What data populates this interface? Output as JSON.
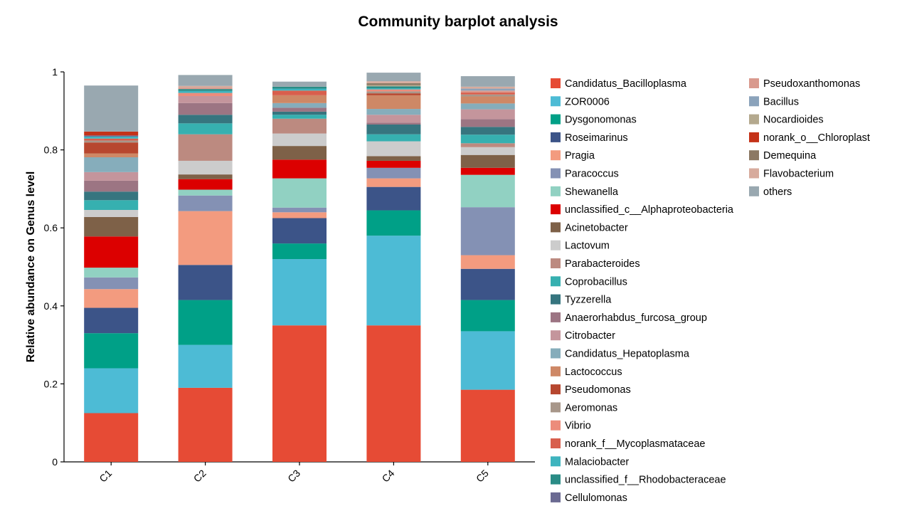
{
  "chart_data": {
    "type": "bar",
    "stacked": true,
    "title": "Community barplot analysis",
    "xlabel": "",
    "ylabel": "Relative abundance on Genus level",
    "ylim": [
      0,
      1
    ],
    "yticks": [
      0,
      0.2,
      0.4,
      0.6,
      0.8,
      1
    ],
    "ytick_labels": [
      "0",
      "0.2",
      "0.4",
      "0.6",
      "0.8",
      "1"
    ],
    "categories": [
      "C1",
      "C2",
      "C3",
      "C4",
      "C5"
    ],
    "legend_position": "right",
    "series": [
      {
        "name": "Candidatus_Bacilloplasma",
        "color": "#e64b35",
        "values": [
          0.125,
          0.19,
          0.35,
          0.35,
          0.185
        ]
      },
      {
        "name": "ZOR0006",
        "color": "#4dbbd5",
        "values": [
          0.115,
          0.11,
          0.17,
          0.23,
          0.15
        ]
      },
      {
        "name": "Dysgonomonas",
        "color": "#00a087",
        "values": [
          0.09,
          0.115,
          0.04,
          0.065,
          0.08
        ]
      },
      {
        "name": "Roseimarinus",
        "color": "#3c5488",
        "values": [
          0.065,
          0.09,
          0.065,
          0.06,
          0.08
        ]
      },
      {
        "name": "Pragia",
        "color": "#f39b7f",
        "values": [
          0.048,
          0.138,
          0.015,
          0.022,
          0.035
        ]
      },
      {
        "name": "Paracoccus",
        "color": "#8491b4",
        "values": [
          0.03,
          0.04,
          0.012,
          0.027,
          0.123
        ]
      },
      {
        "name": "Shewanella",
        "color": "#91d1c2",
        "values": [
          0.025,
          0.015,
          0.075,
          0.0,
          0.083
        ]
      },
      {
        "name": "unclassified_c__Alphaproteobacteria",
        "color": "#dc0000",
        "values": [
          0.08,
          0.027,
          0.048,
          0.018,
          0.018
        ]
      },
      {
        "name": "Acinetobacter",
        "color": "#7e6148",
        "values": [
          0.05,
          0.012,
          0.035,
          0.012,
          0.033
        ]
      },
      {
        "name": "Lactovum",
        "color": "#cccccc",
        "values": [
          0.018,
          0.035,
          0.032,
          0.038,
          0.02
        ]
      },
      {
        "name": "Parabacteroides",
        "color": "#bc8a80",
        "values": [
          0.0,
          0.068,
          0.038,
          0.0,
          0.01
        ]
      },
      {
        "name": "Coprobacillus",
        "color": "#36b0b0",
        "values": [
          0.025,
          0.028,
          0.01,
          0.018,
          0.022
        ]
      },
      {
        "name": "Tyzzerella",
        "color": "#36757f",
        "values": [
          0.022,
          0.022,
          0.008,
          0.025,
          0.02
        ]
      },
      {
        "name": "Anaerorhabdus_furcosa_group",
        "color": "#9c7583",
        "values": [
          0.028,
          0.03,
          0.01,
          0.005,
          0.02
        ]
      },
      {
        "name": "Citrobacter",
        "color": "#c4959c",
        "values": [
          0.022,
          0.018,
          0.0,
          0.02,
          0.025
        ]
      },
      {
        "name": "Candidatus_Hepatoplasma",
        "color": "#86adbb",
        "values": [
          0.038,
          0.0,
          0.012,
          0.015,
          0.015
        ]
      },
      {
        "name": "Lactococcus",
        "color": "#ce8866",
        "values": [
          0.01,
          0.0,
          0.02,
          0.035,
          0.018
        ]
      },
      {
        "name": "Pseudomonas",
        "color": "#b7472f",
        "values": [
          0.028,
          0.0,
          0.0,
          0.005,
          0.0
        ]
      },
      {
        "name": "Aeromonas",
        "color": "#a8978a",
        "values": [
          0.005,
          0.0,
          0.0,
          0.005,
          0.005
        ]
      },
      {
        "name": "Vibrio",
        "color": "#ec8c7b",
        "values": [
          0.0,
          0.008,
          0.0,
          0.005,
          0.0
        ]
      },
      {
        "name": "norank_f__Mycoplasmataceae",
        "color": "#d85f4d",
        "values": [
          0.005,
          0.0,
          0.012,
          0.0,
          0.005
        ]
      },
      {
        "name": "Malaciobacter",
        "color": "#3eb4be",
        "values": [
          0.005,
          0.005,
          0.005,
          0.003,
          0.0
        ]
      },
      {
        "name": "unclassified_f__Rhodobacteraceae",
        "color": "#2a8c86",
        "values": [
          0.0,
          0.005,
          0.005,
          0.005,
          0.0
        ]
      },
      {
        "name": "Cellulomonas",
        "color": "#6b6a92",
        "values": [
          0.003,
          0.0,
          0.0,
          0.0,
          0.0
        ]
      },
      {
        "name": "Pseudoxanthomonas",
        "color": "#d99a8e",
        "values": [
          0.0,
          0.003,
          0.0,
          0.0,
          0.005
        ]
      },
      {
        "name": "Bacillus",
        "color": "#8ba3bb",
        "values": [
          0.0,
          0.0,
          0.0,
          0.0,
          0.005
        ]
      },
      {
        "name": "Nocardioides",
        "color": "#b4a98e",
        "values": [
          0.0,
          0.0,
          0.0,
          0.003,
          0.0
        ]
      },
      {
        "name": "norank_o__Chloroplast",
        "color": "#c43218",
        "values": [
          0.01,
          0.0,
          0.0,
          0.0,
          0.0
        ]
      },
      {
        "name": "Demequina",
        "color": "#8c7964",
        "values": [
          0.0,
          0.0,
          0.0,
          0.005,
          0.0
        ]
      },
      {
        "name": "Flavobacterium",
        "color": "#d7ab9d",
        "values": [
          0.0,
          0.005,
          0.0,
          0.005,
          0.005
        ]
      },
      {
        "name": "others",
        "color": "#99a8b0",
        "values": [
          0.118,
          0.028,
          0.013,
          0.022,
          0.027
        ]
      }
    ]
  }
}
